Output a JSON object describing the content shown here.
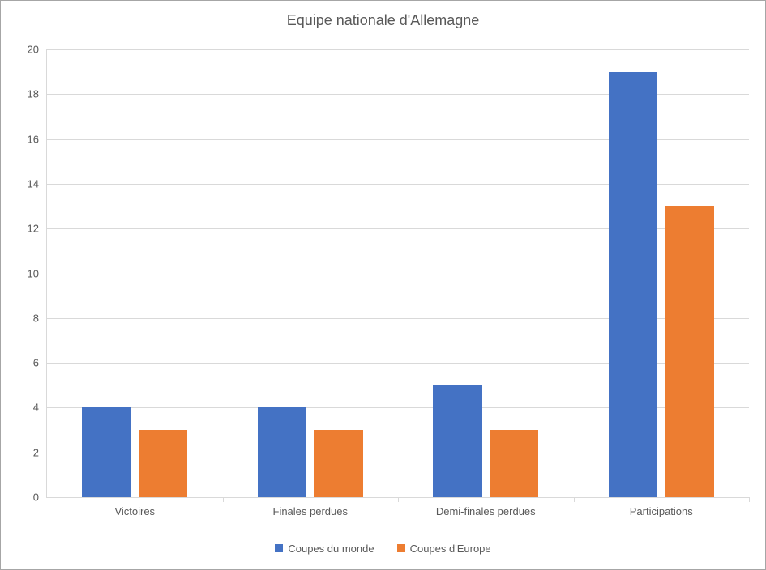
{
  "chart": {
    "type": "bar",
    "title": "Equipe nationale d'Allemagne",
    "title_fontsize": 18,
    "title_color": "#595959",
    "background_color": "#ffffff",
    "border_color": "#a6a6a6",
    "grid_color": "#d9d9d9",
    "axis_label_color": "#595959",
    "axis_label_fontsize": 13,
    "categories": [
      "Victoires",
      "Finales perdues",
      "Demi-finales perdues",
      "Participations"
    ],
    "series": [
      {
        "name": "Coupes du monde",
        "color": "#4472c4",
        "values": [
          4,
          4,
          5,
          19
        ]
      },
      {
        "name": "Coupes d'Europe",
        "color": "#ed7d31",
        "values": [
          3,
          3,
          3,
          13
        ]
      }
    ],
    "ylim": [
      0,
      20
    ],
    "ytick_step": 2,
    "bar_width": 0.28,
    "bar_gap": 0.04,
    "legend_position": "bottom"
  }
}
